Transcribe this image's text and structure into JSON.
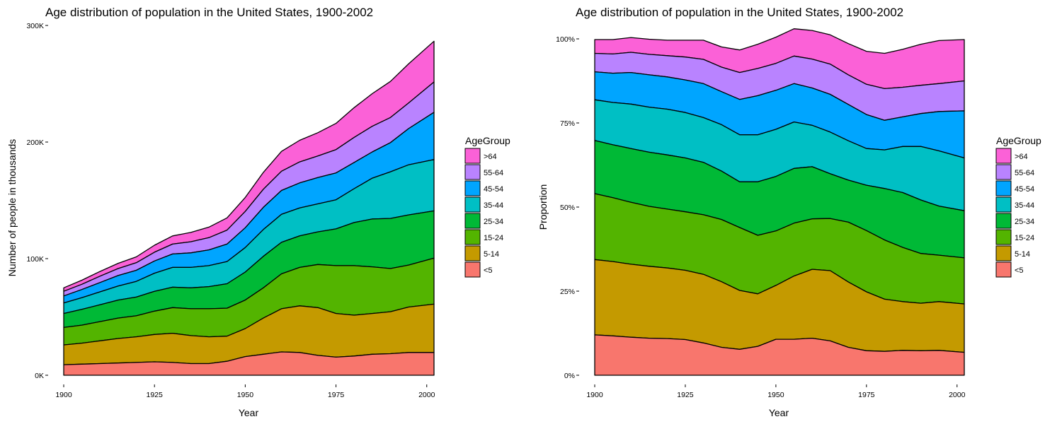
{
  "chart_data": [
    {
      "type": "area",
      "stacking": "absolute",
      "title": "Age distribution of population in the United States, 1900-2002",
      "xlabel": "Year",
      "ylabel": "Number of people in thousands",
      "xlim": [
        1900,
        2002
      ],
      "ylim": [
        0,
        300
      ],
      "x_ticks": [
        1900,
        1925,
        1950,
        1975,
        2000
      ],
      "y_ticks": [
        0,
        100,
        200,
        300
      ],
      "y_tick_labels": [
        "0K",
        "100K",
        "200K",
        "300K"
      ],
      "grid": false,
      "legend_position": "right",
      "legend_title": "AgeGroup",
      "legend_labels": [
        ">64",
        "55-64",
        "45-54",
        "35-44",
        "25-34",
        "15-24",
        "5-14",
        "<5"
      ],
      "x": [
        1900,
        1905,
        1910,
        1915,
        1920,
        1925,
        1930,
        1935,
        1940,
        1945,
        1950,
        1955,
        1960,
        1965,
        1970,
        1975,
        1980,
        1985,
        1990,
        1995,
        2002
      ],
      "series": [
        {
          "name": "<5",
          "color": "#F8766D",
          "values": [
            9,
            9.5,
            10,
            10.5,
            11,
            11.5,
            11,
            10,
            10,
            12,
            16,
            18,
            20,
            19.5,
            17,
            15.5,
            16.5,
            18,
            18.5,
            19.5,
            19.5
          ]
        },
        {
          "name": "5-14",
          "color": "#C49A00",
          "values": [
            17,
            18,
            19.5,
            21,
            22,
            23.5,
            25,
            24,
            23,
            21.5,
            24,
            31,
            37,
            40,
            41,
            37.5,
            35,
            35,
            36,
            39,
            41.5
          ]
        },
        {
          "name": "15-24",
          "color": "#53B400",
          "values": [
            15,
            15.5,
            16.5,
            17.5,
            18,
            20,
            22,
            23,
            24,
            24,
            24.5,
            26,
            30,
            33,
            37,
            41,
            42.5,
            40,
            37,
            36,
            39.5
          ]
        },
        {
          "name": "25-34",
          "color": "#00B936",
          "values": [
            12,
            13.5,
            14.5,
            15.5,
            16,
            17,
            17.5,
            18,
            19,
            21,
            24,
            27,
            27,
            27,
            28,
            31.5,
            37,
            41,
            43,
            43,
            40.5
          ]
        },
        {
          "name": "35-44",
          "color": "#00BFC4",
          "values": [
            9,
            10,
            11,
            12,
            13.5,
            15.5,
            17,
            17.5,
            18,
            19,
            21,
            23,
            24,
            24,
            24,
            25,
            29,
            35,
            40,
            43,
            44
          ]
        },
        {
          "name": "45-54",
          "color": "#00A5FF",
          "values": [
            6,
            7,
            8,
            9,
            9.5,
            10.5,
            11.5,
            12.5,
            13.5,
            15,
            17,
            19,
            20.5,
            21.5,
            22.5,
            23,
            22.5,
            22.5,
            25,
            31,
            40.5
          ]
        },
        {
          "name": "55-64",
          "color": "#B983FF",
          "values": [
            4,
            4.5,
            5.5,
            6,
            6.5,
            7.5,
            8.5,
            9.5,
            10.5,
            12,
            14,
            15.5,
            16.5,
            18,
            18.5,
            20,
            21.5,
            22,
            21.5,
            22,
            26
          ]
        },
        {
          "name": ">64",
          "color": "#FB61D7",
          "values": [
            3,
            3.5,
            4,
            4.5,
            5,
            6,
            7,
            8,
            9,
            10.5,
            12,
            14.5,
            17,
            18.5,
            20,
            22.5,
            25.5,
            28,
            31,
            33.5,
            35
          ]
        }
      ]
    },
    {
      "type": "area",
      "stacking": "proportion",
      "title": "Age distribution of population in the United States, 1900-2002",
      "xlabel": "Year",
      "ylabel": "Proportion",
      "xlim": [
        1900,
        2002
      ],
      "ylim": [
        0,
        1
      ],
      "x_ticks": [
        1900,
        1925,
        1950,
        1975,
        2000
      ],
      "y_ticks": [
        0,
        0.25,
        0.5,
        0.75,
        1
      ],
      "y_tick_labels": [
        "0%",
        "25%",
        "50%",
        "75%",
        "100%"
      ],
      "grid": false,
      "legend_position": "right",
      "legend_title": "AgeGroup",
      "legend_labels": [
        ">64",
        "55-64",
        "45-54",
        "35-44",
        "25-34",
        "15-24",
        "5-14",
        "<5"
      ],
      "x": [
        1900,
        1905,
        1910,
        1915,
        1920,
        1925,
        1930,
        1935,
        1940,
        1945,
        1950,
        1955,
        1960,
        1965,
        1970,
        1975,
        1980,
        1985,
        1990,
        1995,
        2002
      ],
      "series": [
        {
          "name": "<5",
          "color": "#F8766D",
          "values": [
            0.12,
            0.117,
            0.113,
            0.11,
            0.109,
            0.106,
            0.096,
            0.083,
            0.077,
            0.086,
            0.107,
            0.107,
            0.11,
            0.102,
            0.083,
            0.073,
            0.071,
            0.074,
            0.073,
            0.074,
            0.068
          ]
        },
        {
          "name": "5-14",
          "color": "#C49A00",
          "values": [
            0.224,
            0.221,
            0.217,
            0.214,
            0.21,
            0.206,
            0.204,
            0.195,
            0.175,
            0.156,
            0.16,
            0.188,
            0.205,
            0.209,
            0.194,
            0.175,
            0.155,
            0.145,
            0.141,
            0.145,
            0.144
          ]
        },
        {
          "name": "15-24",
          "color": "#53B400",
          "values": [
            0.196,
            0.19,
            0.184,
            0.178,
            0.175,
            0.174,
            0.177,
            0.185,
            0.187,
            0.174,
            0.162,
            0.157,
            0.15,
            0.155,
            0.178,
            0.182,
            0.176,
            0.161,
            0.148,
            0.138,
            0.137
          ]
        },
        {
          "name": "25-34",
          "color": "#00B936",
          "values": [
            0.158,
            0.157,
            0.16,
            0.161,
            0.161,
            0.16,
            0.156,
            0.144,
            0.136,
            0.159,
            0.162,
            0.163,
            0.155,
            0.133,
            0.125,
            0.135,
            0.153,
            0.163,
            0.159,
            0.146,
            0.14
          ]
        },
        {
          "name": "35-44",
          "color": "#00BFC4",
          "values": [
            0.121,
            0.126,
            0.132,
            0.134,
            0.136,
            0.135,
            0.133,
            0.138,
            0.14,
            0.14,
            0.14,
            0.138,
            0.123,
            0.124,
            0.117,
            0.109,
            0.115,
            0.137,
            0.159,
            0.164,
            0.157
          ]
        },
        {
          "name": "45-54",
          "color": "#00A5FF",
          "values": [
            0.083,
            0.087,
            0.094,
            0.096,
            0.096,
            0.097,
            0.101,
            0.098,
            0.105,
            0.116,
            0.116,
            0.114,
            0.111,
            0.112,
            0.108,
            0.101,
            0.088,
            0.088,
            0.098,
            0.117,
            0.14
          ]
        },
        {
          "name": "55-64",
          "color": "#B983FF",
          "values": [
            0.055,
            0.057,
            0.06,
            0.061,
            0.063,
            0.068,
            0.072,
            0.073,
            0.08,
            0.081,
            0.08,
            0.082,
            0.086,
            0.09,
            0.088,
            0.09,
            0.094,
            0.088,
            0.084,
            0.083,
            0.089
          ]
        },
        {
          "name": ">64",
          "color": "#FB61D7",
          "values": [
            0.041,
            0.043,
            0.044,
            0.045,
            0.046,
            0.05,
            0.057,
            0.06,
            0.067,
            0.072,
            0.078,
            0.081,
            0.085,
            0.087,
            0.093,
            0.098,
            0.105,
            0.113,
            0.122,
            0.128,
            0.123
          ]
        }
      ]
    }
  ]
}
